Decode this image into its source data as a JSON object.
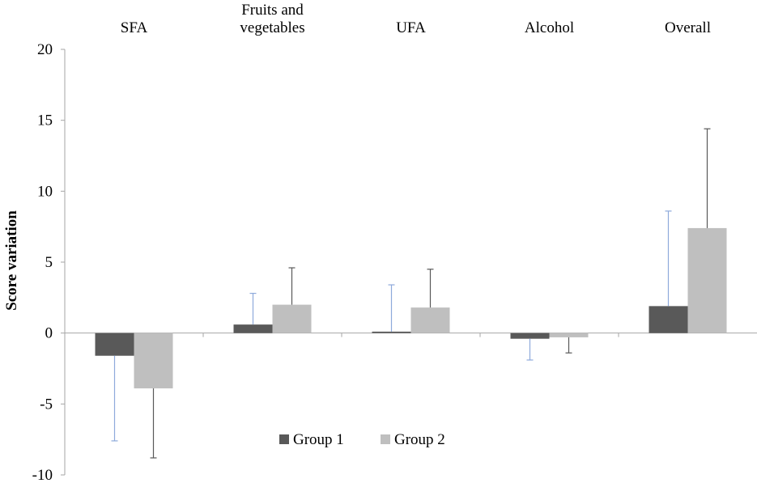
{
  "chart_data": {
    "type": "bar",
    "ylabel": "Score variation",
    "ylim": [
      -10,
      20
    ],
    "yticks": [
      -10,
      -5,
      0,
      5,
      10,
      15,
      20
    ],
    "ytick_labels": [
      "-10",
      "-5",
      "0",
      "5",
      "10",
      "15",
      "20"
    ],
    "categories": [
      {
        "lines": [
          "SFA"
        ]
      },
      {
        "lines": [
          "Fruits and",
          "vegetables"
        ]
      },
      {
        "lines": [
          "UFA"
        ]
      },
      {
        "lines": [
          "Alcohol"
        ]
      },
      {
        "lines": [
          "Overall"
        ]
      }
    ],
    "category_position": "top",
    "legend_position": "bottom-center",
    "series": [
      {
        "name": "Group 1",
        "color": "#595959",
        "error_color": "#8eaadb",
        "values": [
          -1.6,
          0.6,
          0.1,
          -0.4,
          1.9
        ],
        "errors": [
          6.0,
          2.2,
          3.3,
          1.5,
          6.7
        ],
        "error_direction": [
          -1,
          1,
          1,
          -1,
          1
        ]
      },
      {
        "name": "Group 2",
        "color": "#bfbfbf",
        "error_color": "#595959",
        "values": [
          -3.9,
          2.0,
          1.8,
          -0.3,
          7.4
        ],
        "errors": [
          4.9,
          2.6,
          2.7,
          1.1,
          7.0
        ],
        "error_direction": [
          -1,
          1,
          1,
          -1,
          1
        ]
      }
    ],
    "grid": false
  }
}
